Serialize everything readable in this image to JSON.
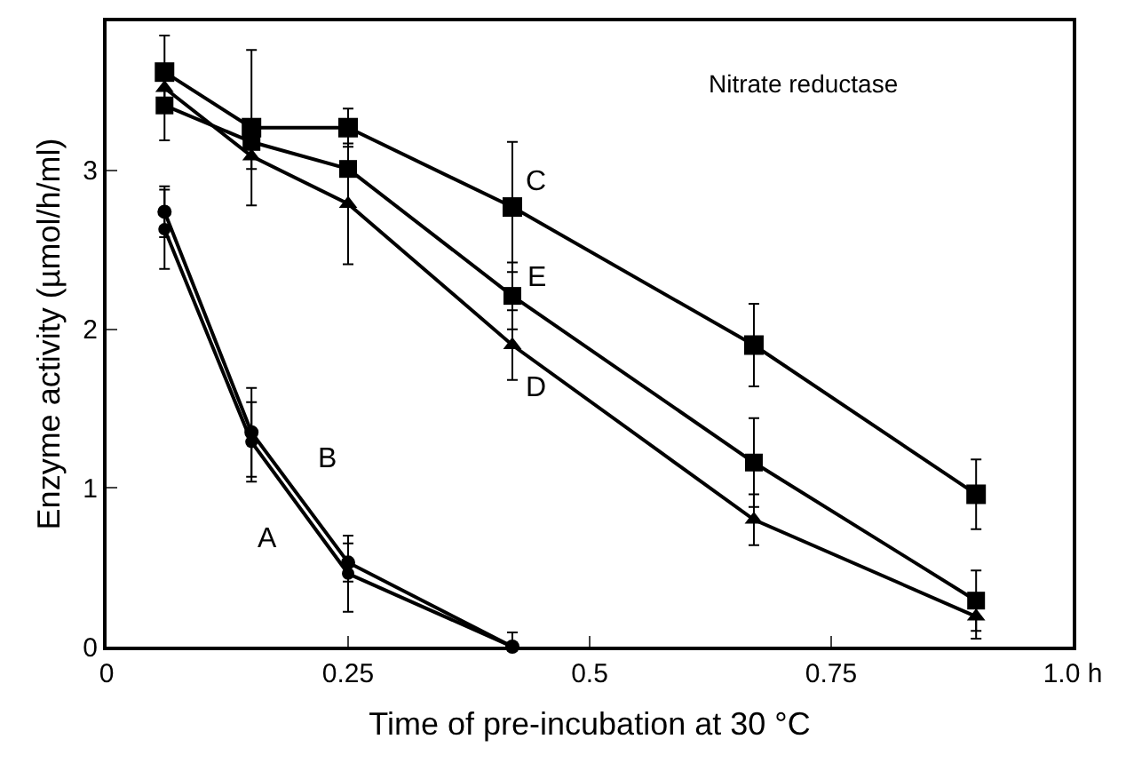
{
  "chart_data": {
    "type": "line",
    "x": [
      0.06,
      0.15,
      0.25,
      0.42,
      0.67,
      0.9
    ],
    "series": [
      {
        "color": "#000000",
        "marker": "square",
        "values": [
          3.62,
          3.27,
          3.27,
          2.77,
          1.9,
          0.96
        ],
        "errors": [
          0.23,
          0.49,
          0.12,
          0.41,
          0.26,
          0.22
        ]
      },
      {
        "color": "#000000",
        "marker": "square",
        "values": [
          3.41,
          3.18,
          3.01,
          2.21,
          1.16,
          0.29
        ],
        "errors": [
          0.22,
          null,
          null,
          0.21,
          0.28,
          0.19
        ]
      },
      {
        "color": "#000000",
        "marker": "triangle",
        "values": [
          3.52,
          3.09,
          2.79,
          1.9,
          0.8,
          0.19
        ],
        "errors": [
          null,
          0.08,
          0.38,
          0.22,
          0.16,
          0.14
        ]
      },
      {
        "color": "#000000",
        "marker": "circle",
        "x": [
          0.06,
          0.15,
          0.25,
          0.42
        ],
        "values": [
          2.74,
          1.35,
          0.53,
          0
        ],
        "errors": [
          0.16,
          0.28,
          0.12,
          [
            0,
            0.09
          ]
        ]
      },
      {
        "color": "#000000",
        "marker": "circle",
        "x": [
          0.06,
          0.15,
          0.25,
          0.42
        ],
        "values": [
          2.63,
          1.29,
          0.46,
          0
        ],
        "errors": [
          0.25,
          0.25,
          0.24,
          null
        ]
      }
    ],
    "xlabel": "Time of pre-incubation at 30 °C",
    "ylabel": "Enzyme activity (µmol/h/ml)",
    "xlim": [
      0,
      1.0
    ],
    "ylim": [
      0,
      3.94
    ],
    "xticks": [
      0,
      0.25,
      0.5,
      0.75,
      {
        "value": 1.0,
        "label": "1.0 h"
      }
    ],
    "yticks": [
      0,
      1,
      2,
      3
    ],
    "annotations": [
      "Nitrate reductase",
      "C",
      "E",
      "D",
      "B",
      "A"
    ],
    "grid": false,
    "line_style": "solid"
  }
}
